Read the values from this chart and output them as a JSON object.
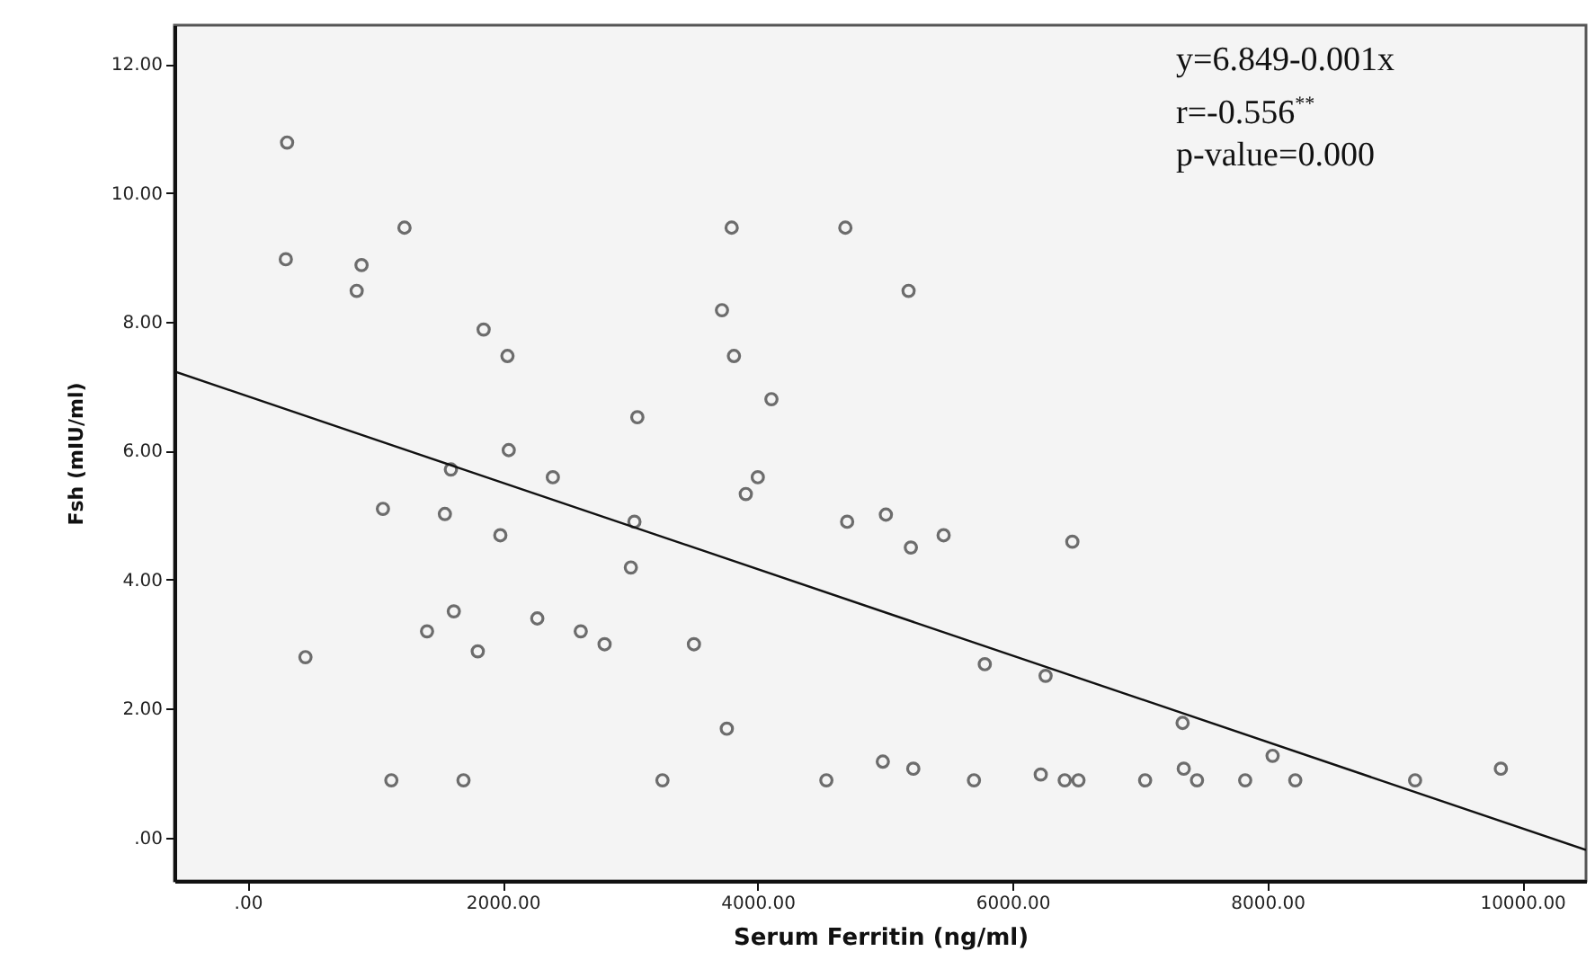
{
  "chart_data": {
    "type": "scatter",
    "xlabel": "Serum Ferritin (ng/ml)",
    "ylabel": "Fsh (mIU/ml)",
    "xlim": [
      -575,
      10500
    ],
    "ylim": [
      -0.67,
      12.6
    ],
    "xticks": [
      {
        "value": 0,
        "label": ".00"
      },
      {
        "value": 2000,
        "label": "2000.00"
      },
      {
        "value": 4000,
        "label": "4000.00"
      },
      {
        "value": 6000,
        "label": "6000.00"
      },
      {
        "value": 8000,
        "label": "8000.00"
      },
      {
        "value": 10000,
        "label": "10000.00"
      }
    ],
    "yticks": [
      {
        "value": 0,
        "label": ".00"
      },
      {
        "value": 2,
        "label": "2.00"
      },
      {
        "value": 4,
        "label": "4.00"
      },
      {
        "value": 6,
        "label": "6.00"
      },
      {
        "value": 8,
        "label": "8.00"
      },
      {
        "value": 10,
        "label": "10.00"
      },
      {
        "value": 12,
        "label": "12.00"
      }
    ],
    "annotations": [
      "y=6.849-0.001x",
      "r=-0.556$^{**}$",
      "p-value=0.000"
    ],
    "series": [
      {
        "marker": "circle",
        "color": "#333333",
        "x": [
          309,
          299,
          1230,
          893,
          855,
          1851,
          2038,
          3797,
          3721,
          3815,
          4109,
          3057,
          2048,
          1594,
          2394,
          4002,
          3908,
          4689,
          5185,
          1061,
          1547,
          1982,
          3034,
          3006,
          1617,
          1407,
          2272,
          2613,
          2800,
          3501,
          1805,
          453,
          3759,
          1127,
          1693,
          3254,
          4703,
          5007,
          5203,
          5460,
          6470,
          5783,
          6260,
          7335,
          8041,
          4540,
          4983,
          5222,
          5698,
          6222,
          6410,
          6518,
          7041,
          7344,
          7448,
          7826,
          8219,
          9159,
          9832
        ],
        "values": [
          10.78,
          8.97,
          9.46,
          8.88,
          8.48,
          7.88,
          7.47,
          9.46,
          8.18,
          7.47,
          6.8,
          6.52,
          6.01,
          5.71,
          5.59,
          5.59,
          5.33,
          9.46,
          8.48,
          5.1,
          5.02,
          4.69,
          4.9,
          4.19,
          3.51,
          3.2,
          3.4,
          3.2,
          3.0,
          3.0,
          2.89,
          2.8,
          1.69,
          0.89,
          0.89,
          0.89,
          4.9,
          5.01,
          4.5,
          4.69,
          4.59,
          2.69,
          2.51,
          1.78,
          1.27,
          0.89,
          1.18,
          1.07,
          0.89,
          0.98,
          0.89,
          0.89,
          0.89,
          1.07,
          0.89,
          0.89,
          0.89,
          0.89,
          1.07
        ]
      },
      {
        "type": "line",
        "color": "#111111",
        "x": [
          -575,
          10500
        ],
        "values": [
          7.23,
          -0.19
        ]
      }
    ]
  }
}
